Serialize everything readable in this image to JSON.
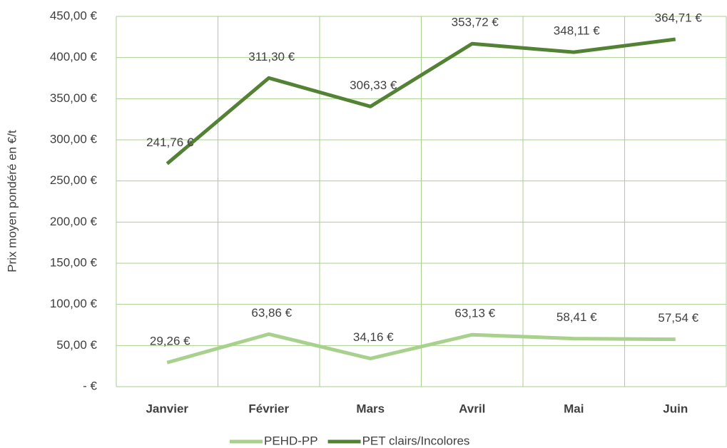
{
  "chart_data": {
    "type": "line",
    "stacked": true,
    "y_label": "Prix moyen pondéré en €/t",
    "categories": [
      "Janvier",
      "Février",
      "Mars",
      "Avril",
      "Mai",
      "Juin"
    ],
    "series": [
      {
        "name": "PEHD-PP",
        "color": "#a9d18e",
        "values": [
          29.26,
          63.86,
          34.16,
          63.13,
          58.41,
          57.54
        ],
        "value_labels": [
          "29,26 €",
          "63,86 €",
          "34,16 €",
          "63,13 €",
          "58,41 €",
          "57,54 €"
        ]
      },
      {
        "name": "PET clairs/Incolores",
        "color": "#548235",
        "values": [
          241.76,
          311.3,
          306.33,
          353.72,
          348.11,
          364.71
        ],
        "value_labels": [
          "241,76 €",
          "311,30 €",
          "306,33 €",
          "353,72 €",
          "348,11 €",
          "364,71 €"
        ]
      }
    ],
    "ylim": [
      0,
      450
    ],
    "yticks": [
      {
        "value": 0,
        "label": "-   €"
      },
      {
        "value": 50,
        "label": "50,00 €"
      },
      {
        "value": 100,
        "label": "100,00 €"
      },
      {
        "value": 150,
        "label": "150,00 €"
      },
      {
        "value": 200,
        "label": "200,00 €"
      },
      {
        "value": 250,
        "label": "250,00 €"
      },
      {
        "value": 300,
        "label": "300,00 €"
      },
      {
        "value": 350,
        "label": "350,00 €"
      },
      {
        "value": 400,
        "label": "400,00 €"
      },
      {
        "value": 450,
        "label": "450,00 €"
      }
    ],
    "grid": true,
    "legend": "bottom"
  }
}
